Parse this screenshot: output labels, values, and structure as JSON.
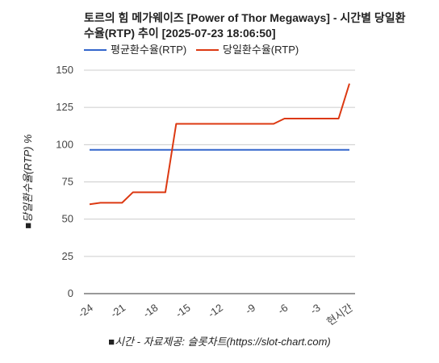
{
  "chart_data": {
    "type": "line",
    "title_line1": "토르의 힘 메가웨이즈 [Power of Thor Megaways] - 시간별 당일환",
    "title_line2": "수율(RTP) 추이 [2025-07-23 18:06:50]",
    "ylabel": "■당일환수율(RTP) %",
    "xlabel": "■시간 - 자료제공: 슬롯차트(https://slot-chart.com)",
    "ylim": [
      0,
      150
    ],
    "yticks": [
      "0",
      "25",
      "50",
      "75",
      "100",
      "125",
      "150"
    ],
    "x": [
      -24,
      -23,
      -22,
      -21,
      -20,
      -19,
      -18,
      -17,
      -16,
      -15,
      -14,
      -13,
      -12,
      -11,
      -10,
      -9,
      -8,
      -7,
      -6,
      -5,
      -4,
      -3,
      -2,
      -1,
      0
    ],
    "xticks": [
      {
        "x": -24,
        "label": "-24"
      },
      {
        "x": -21,
        "label": "-21"
      },
      {
        "x": -18,
        "label": "-18"
      },
      {
        "x": -15,
        "label": "-15"
      },
      {
        "x": -12,
        "label": "-12"
      },
      {
        "x": -9,
        "label": "-9"
      },
      {
        "x": -6,
        "label": "-6"
      },
      {
        "x": -3,
        "label": "-3"
      },
      {
        "x": 0,
        "label": "현시간"
      }
    ],
    "grid": true,
    "legend_position": "top",
    "series": [
      {
        "name": "평균환수율(RTP)",
        "color": "#3366cc",
        "values": [
          96.5,
          96.5,
          96.5,
          96.5,
          96.5,
          96.5,
          96.5,
          96.5,
          96.5,
          96.5,
          96.5,
          96.5,
          96.5,
          96.5,
          96.5,
          96.5,
          96.5,
          96.5,
          96.5,
          96.5,
          96.5,
          96.5,
          96.5,
          96.5,
          96.5
        ]
      },
      {
        "name": "당일환수율(RTP)",
        "color": "#dc3912",
        "values": [
          60,
          61,
          61,
          61,
          68,
          68,
          68,
          68,
          114,
          114,
          114,
          114,
          114,
          114,
          114,
          114,
          114,
          114,
          117.5,
          117.5,
          117.5,
          117.5,
          117.5,
          117.5,
          141
        ]
      }
    ]
  }
}
